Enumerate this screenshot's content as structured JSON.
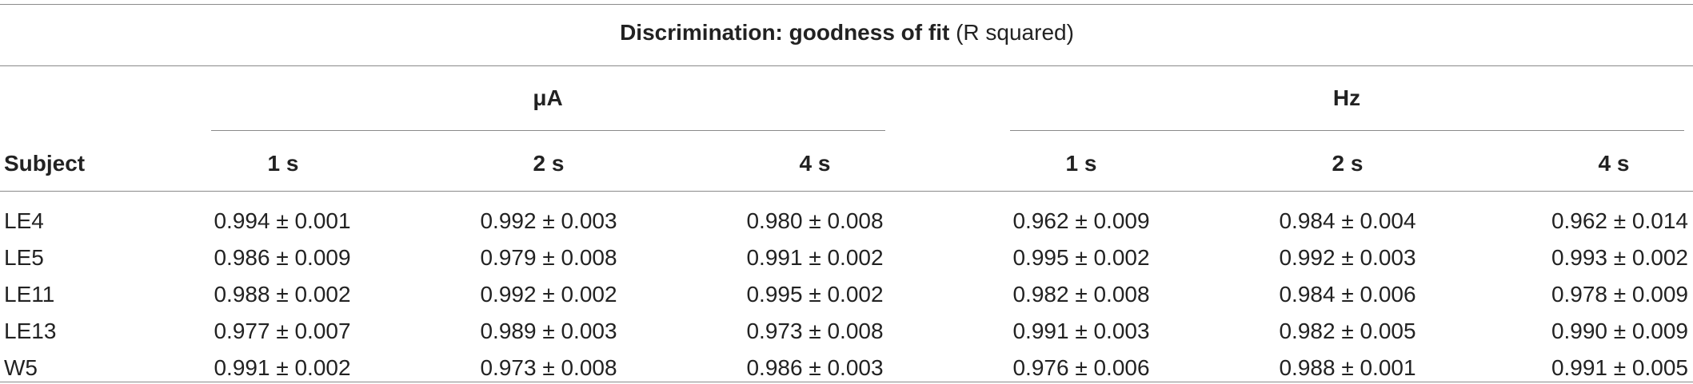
{
  "table": {
    "caption_bold": "Discrimination: goodness of fit",
    "caption_normal": "(R squared)",
    "group_headers": [
      "μA",
      "Hz"
    ],
    "subject_header": "Subject",
    "column_headers": [
      "1 s",
      "2 s",
      "4 s",
      "1 s",
      "2 s",
      "4 s"
    ],
    "rows": [
      {
        "subject": "LE4",
        "values": [
          "0.994 ± 0.001",
          "0.992 ± 0.003",
          "0.980 ± 0.008",
          "0.962 ± 0.009",
          "0.984 ± 0.004",
          "0.962 ± 0.014"
        ]
      },
      {
        "subject": "LE5",
        "values": [
          "0.986 ± 0.009",
          "0.979 ± 0.008",
          "0.991 ± 0.002",
          "0.995 ± 0.002",
          "0.992 ± 0.003",
          "0.993 ± 0.002"
        ]
      },
      {
        "subject": "LE11",
        "values": [
          "0.988 ± 0.002",
          "0.992 ± 0.002",
          "0.995 ± 0.002",
          "0.982 ± 0.008",
          "0.984 ± 0.006",
          "0.978 ± 0.009"
        ]
      },
      {
        "subject": "LE13",
        "values": [
          "0.977 ± 0.007",
          "0.989 ± 0.003",
          "0.973 ± 0.008",
          "0.991 ± 0.003",
          "0.982 ± 0.005",
          "0.990 ± 0.009"
        ]
      },
      {
        "subject": "W5",
        "values": [
          "0.991 ± 0.002",
          "0.973 ± 0.008",
          "0.986 ± 0.003",
          "0.976 ± 0.006",
          "0.988 ± 0.001",
          "0.991 ± 0.005"
        ]
      }
    ]
  }
}
